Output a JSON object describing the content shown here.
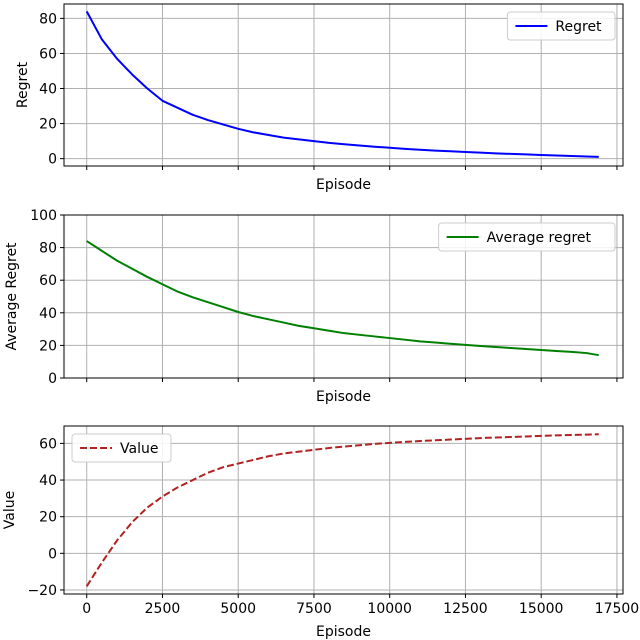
{
  "chart_data": [
    {
      "type": "line",
      "xlabel": "Episode",
      "ylabel": "Regret",
      "xlim": [
        -750,
        17700
      ],
      "ylim": [
        -4.2,
        88.2
      ],
      "xticks": [
        0,
        2500,
        5000,
        7500,
        10000,
        12500,
        15000,
        17500
      ],
      "yticks": [
        0,
        20,
        40,
        60,
        80
      ],
      "show_x_tick_labels": false,
      "grid": true,
      "legend": "top-right",
      "series": [
        {
          "name": "Regret",
          "color": "#0000ff",
          "linestyle": "solid",
          "x": [
            0,
            500,
            1000,
            1500,
            2000,
            2500,
            3000,
            3500,
            4000,
            4500,
            5000,
            5500,
            6000,
            6500,
            7000,
            7500,
            8000,
            8500,
            9000,
            9500,
            10000,
            10500,
            11000,
            11500,
            12000,
            12500,
            13000,
            13500,
            14000,
            14500,
            15000,
            15500,
            16000,
            16500,
            16900
          ],
          "y": [
            84,
            68,
            57,
            48,
            40,
            33,
            29,
            25,
            22,
            19.5,
            17,
            15,
            13.5,
            12,
            11,
            10,
            9,
            8.2,
            7.5,
            6.8,
            6.2,
            5.6,
            5.1,
            4.6,
            4.2,
            3.8,
            3.4,
            3.0,
            2.7,
            2.4,
            2.1,
            1.8,
            1.5,
            1.2,
            1.0
          ]
        }
      ]
    },
    {
      "type": "line",
      "xlabel": "Episode",
      "ylabel": "Average Regret",
      "xlim": [
        -750,
        17700
      ],
      "ylim": [
        0,
        100
      ],
      "xticks": [
        0,
        2500,
        5000,
        7500,
        10000,
        12500,
        15000,
        17500
      ],
      "yticks": [
        0,
        20,
        40,
        60,
        80,
        100
      ],
      "show_x_tick_labels": false,
      "grid": true,
      "legend": "top-right",
      "series": [
        {
          "name": "Average regret",
          "color": "#008000",
          "linestyle": "solid",
          "x": [
            0,
            500,
            1000,
            1500,
            2000,
            2500,
            3000,
            3500,
            4000,
            4500,
            5000,
            5500,
            6000,
            6500,
            7000,
            7500,
            8000,
            8500,
            9000,
            9500,
            10000,
            10500,
            11000,
            11500,
            12000,
            12500,
            13000,
            13500,
            14000,
            14500,
            15000,
            15500,
            16000,
            16500,
            16900
          ],
          "y": [
            84,
            78,
            72,
            67,
            62,
            57.5,
            53,
            49.5,
            46.5,
            43.5,
            40.5,
            38,
            36,
            34,
            32,
            30.5,
            29,
            27.5,
            26.5,
            25.5,
            24.5,
            23.5,
            22.5,
            21.8,
            21,
            20.3,
            19.6,
            19,
            18.4,
            17.8,
            17.2,
            16.6,
            16,
            15.3,
            14
          ]
        }
      ]
    },
    {
      "type": "line",
      "xlabel": "Episode",
      "ylabel": "Value",
      "xlim": [
        -750,
        17700
      ],
      "ylim": [
        -22.2,
        69.5
      ],
      "xticks": [
        0,
        2500,
        5000,
        7500,
        10000,
        12500,
        15000,
        17500
      ],
      "yticks": [
        -20,
        0,
        20,
        40,
        60
      ],
      "show_x_tick_labels": true,
      "grid": true,
      "legend": "top-left",
      "series": [
        {
          "name": "Value",
          "color": "#b22222",
          "linestyle": "dashed",
          "x": [
            0,
            500,
            1000,
            1500,
            2000,
            2500,
            3000,
            3500,
            4000,
            4500,
            5000,
            5500,
            6000,
            6500,
            7000,
            7500,
            8000,
            8500,
            9000,
            9500,
            10000,
            10500,
            11000,
            11500,
            12000,
            12500,
            13000,
            13500,
            14000,
            14500,
            15000,
            15500,
            16000,
            16500,
            16900
          ],
          "y": [
            -18,
            -5,
            7,
            17,
            25,
            31,
            36,
            40,
            44,
            47,
            49,
            51,
            53,
            54.5,
            55.5,
            56.5,
            57.5,
            58.3,
            59,
            59.7,
            60.3,
            60.8,
            61.3,
            61.7,
            62.1,
            62.5,
            62.9,
            63.2,
            63.5,
            63.8,
            64.1,
            64.4,
            64.6,
            64.8,
            65
          ]
        }
      ]
    }
  ]
}
